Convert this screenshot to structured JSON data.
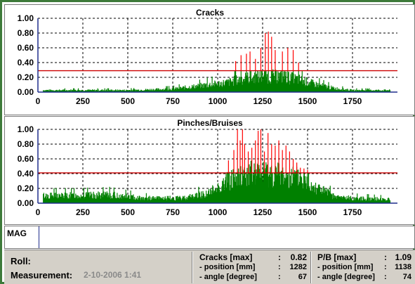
{
  "charts": {
    "cracks": {
      "title": "Cracks",
      "threshold": 0.29
    },
    "pinches": {
      "title": "Pinches/Bruises",
      "threshold": 0.41
    }
  },
  "chart_data": [
    {
      "type": "bar",
      "title": "Cracks",
      "xlim": [
        0,
        2000
      ],
      "ylim": [
        0,
        1.0
      ],
      "x_ticks": [
        "0",
        "250",
        "500",
        "750",
        "1000",
        "1250",
        "1500",
        "1750"
      ],
      "y_ticks": [
        "0.00",
        "0.20",
        "0.40",
        "0.60",
        "0.80",
        "1.00"
      ],
      "threshold": 0.29,
      "grid": true,
      "colors": {
        "below": "#008000",
        "above": "#ff0000",
        "threshold": "#cc0000"
      },
      "series": [
        {
          "envelope_x": [
            30,
            500,
            750,
            900,
            1050,
            1150,
            1250,
            1350,
            1450,
            1550,
            1650,
            1750,
            1960
          ],
          "envelope_y": [
            0.03,
            0.03,
            0.05,
            0.1,
            0.15,
            0.22,
            0.25,
            0.25,
            0.2,
            0.12,
            0.06,
            0.03,
            0.03
          ],
          "spikes_x": [
            1100,
            1130,
            1160,
            1180,
            1210,
            1240,
            1265,
            1282,
            1300,
            1320,
            1360,
            1390,
            1420,
            1450
          ],
          "spikes_y": [
            0.42,
            0.5,
            0.52,
            0.55,
            0.45,
            0.6,
            0.8,
            0.82,
            0.75,
            0.57,
            0.55,
            0.6,
            0.57,
            0.4
          ]
        }
      ]
    },
    {
      "type": "bar",
      "title": "Pinches/Bruises",
      "xlim": [
        0,
        2000
      ],
      "ylim": [
        0,
        1.0
      ],
      "x_ticks": [
        "0",
        "250",
        "500",
        "750",
        "1000",
        "1250",
        "1500",
        "1750"
      ],
      "y_ticks": [
        "0.00",
        "0.20",
        "0.40",
        "0.60",
        "0.80",
        "1.00"
      ],
      "threshold": 0.41,
      "grid": true,
      "colors": {
        "below": "#008000",
        "above": "#ff0000",
        "threshold": "#cc0000"
      },
      "series": [
        {
          "envelope_x": [
            30,
            200,
            400,
            600,
            800,
            950,
            1050,
            1150,
            1250,
            1350,
            1450,
            1550,
            1650,
            1750,
            1960
          ],
          "envelope_y": [
            0.12,
            0.12,
            0.13,
            0.08,
            0.08,
            0.16,
            0.35,
            0.45,
            0.48,
            0.45,
            0.4,
            0.26,
            0.1,
            0.08,
            0.06
          ],
          "spikes_x": [
            1060,
            1090,
            1110,
            1125,
            1138,
            1150,
            1170,
            1190,
            1210,
            1225,
            1240,
            1260,
            1280,
            1300,
            1320,
            1340,
            1360,
            1380,
            1400,
            1420,
            1440,
            1460,
            1480,
            1500
          ],
          "spikes_y": [
            0.58,
            0.72,
            1.0,
            0.85,
            1.09,
            0.8,
            0.7,
            0.75,
            0.85,
            0.98,
            1.0,
            0.7,
            0.95,
            0.8,
            0.78,
            0.85,
            0.72,
            0.78,
            0.7,
            0.6,
            0.55,
            0.48,
            0.47,
            0.45
          ]
        }
      ]
    }
  ],
  "mag": {
    "label": "MAG"
  },
  "footer": {
    "roll_label": "Roll:",
    "measurement_label": "Measurement:",
    "measurement_value": "2-10-2006 1:41",
    "cracks": {
      "max_label": "Cracks [max]",
      "max_value": "0.82",
      "position_label": "- position [mm]",
      "position_value": "1282",
      "angle_label": "- angle [degree]",
      "angle_value": "67"
    },
    "pb": {
      "max_label": "P/B [max]",
      "max_value": "1.09",
      "position_label": "- position [mm]",
      "position_value": "1138",
      "angle_label": "- angle [degree]",
      "angle_value": "74"
    },
    "colon": ":"
  }
}
